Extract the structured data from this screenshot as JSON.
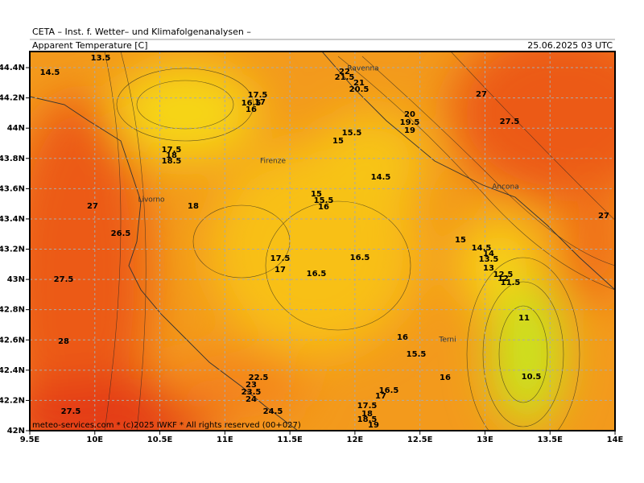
{
  "header": {
    "title": "CETA – Inst. f. Wetter– und Klimafolgenanalysen –",
    "parameter": "Apparent Temperature [C]",
    "valid_time": "25.06.2025 03 UTC"
  },
  "map": {
    "lon_ticks": [
      {
        "value": 9.5,
        "label": "9.5E"
      },
      {
        "value": 10,
        "label": "10E"
      },
      {
        "value": 10.5,
        "label": "10.5E"
      },
      {
        "value": 11,
        "label": "11E"
      },
      {
        "value": 11.5,
        "label": "11.5E"
      },
      {
        "value": 12,
        "label": "12E"
      },
      {
        "value": 12.5,
        "label": "12.5E"
      },
      {
        "value": 13,
        "label": "13E"
      },
      {
        "value": 13.5,
        "label": "13.5E"
      },
      {
        "value": 14,
        "label": "14E"
      }
    ],
    "lat_ticks": [
      {
        "value": 42,
        "label": "42N"
      },
      {
        "value": 42.2,
        "label": "42.2N"
      },
      {
        "value": 42.4,
        "label": "42.4N"
      },
      {
        "value": 42.6,
        "label": "42.6N"
      },
      {
        "value": 42.8,
        "label": "42.8N"
      },
      {
        "value": 43,
        "label": "43N"
      },
      {
        "value": 43.2,
        "label": "43.2N"
      },
      {
        "value": 43.4,
        "label": "43.4N"
      },
      {
        "value": 43.6,
        "label": "43.6N"
      },
      {
        "value": 43.8,
        "label": "43.8N"
      },
      {
        "value": 44,
        "label": "44N"
      },
      {
        "value": 44.2,
        "label": "44.2N"
      },
      {
        "value": 44.4,
        "label": "44.4N"
      }
    ],
    "cities": [
      "Ravenna",
      "Firenze",
      "Livorno",
      "Ancona",
      "Terni"
    ],
    "contour_labels": [
      "13.5",
      "14.5",
      "17.5",
      "16.5",
      "17",
      "16",
      "17.5",
      "18",
      "18.5",
      "22",
      "21.5",
      "21",
      "20.5",
      "27",
      "27.5",
      "20",
      "19.5",
      "19",
      "15.5",
      "15",
      "14.5",
      "15",
      "15.5",
      "16",
      "18",
      "27",
      "26.5",
      "27",
      "15",
      "14.5",
      "14",
      "13.5",
      "13",
      "12.5",
      "12",
      "11.5",
      "17.5",
      "17",
      "16.5",
      "16.5",
      "27.5",
      "11",
      "28",
      "16",
      "15.5",
      "16",
      "10.5",
      "22.5",
      "23",
      "23.5",
      "24",
      "16.5",
      "17",
      "17.5",
      "18",
      "18.5",
      "19",
      "24.5",
      "27.5"
    ],
    "copyright": "meteo-services.com * (c)2025 IWKF * All rights reserved (00+027)"
  }
}
